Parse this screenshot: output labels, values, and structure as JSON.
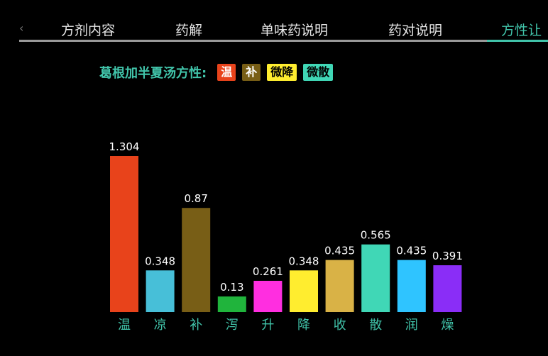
{
  "tabs": [
    {
      "label": "方剂内容",
      "active": false
    },
    {
      "label": "药解",
      "active": false
    },
    {
      "label": "单味药说明",
      "active": false
    },
    {
      "label": "药对说明",
      "active": false
    },
    {
      "label": "方性让",
      "active": true
    }
  ],
  "prev_arrow": "‹",
  "summary": {
    "label": "葛根加半夏汤方性:",
    "badges": [
      {
        "text": "温",
        "bg": "#e8431b",
        "fg": "#ffffff"
      },
      {
        "text": "补",
        "bg": "#785e16",
        "fg": "#ffffff"
      },
      {
        "text": "微降",
        "bg": "#ffed2f",
        "fg": "#000000"
      },
      {
        "text": "微散",
        "bg": "#40d7b6",
        "fg": "#000000"
      }
    ]
  },
  "chart_data": {
    "type": "bar",
    "categories": [
      "温",
      "凉",
      "补",
      "泻",
      "升",
      "降",
      "收",
      "散",
      "润",
      "燥"
    ],
    "values": [
      1.304,
      0.348,
      0.87,
      0.13,
      0.261,
      0.348,
      0.435,
      0.565,
      0.435,
      0.391
    ],
    "value_labels": [
      "1.304",
      "0.348",
      "0.87",
      "0.13",
      "0.261",
      "0.348",
      "0.435",
      "0.565",
      "0.435",
      "0.391"
    ],
    "colors": [
      "#e8431b",
      "#47bfd8",
      "#785e16",
      "#20b43c",
      "#ff2ee0",
      "#ffed2f",
      "#d9b246",
      "#40d7b6",
      "#2fc4ff",
      "#8a2df7"
    ],
    "ylim": [
      0,
      1.304
    ],
    "grid": false,
    "legend": false
  }
}
